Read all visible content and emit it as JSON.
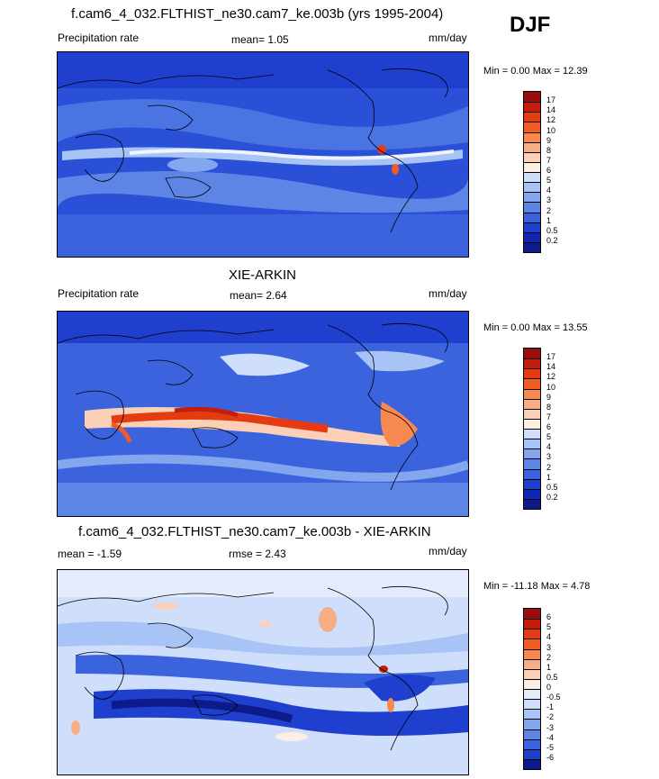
{
  "season": "DJF",
  "panels": [
    {
      "title": "f.cam6_4_032.FLTHIST_ne30.cam7_ke.003b (yrs 1995-2004)",
      "left_label": "Precipitation rate",
      "center_label": "mean=   1.05",
      "right_label": "mm/day",
      "minmax": "Min =   0.00 Max =  12.39",
      "colorbar_labels": [
        "17",
        "14",
        "12",
        "10",
        "9",
        "8",
        "7",
        "6",
        "5",
        "4",
        "3",
        "2",
        "1",
        "0.5",
        "0.2"
      ]
    },
    {
      "title": "XIE-ARKIN",
      "left_label": "Precipitation rate",
      "center_label": "mean=   2.64",
      "right_label": "mm/day",
      "minmax": "Min =   0.00 Max =  13.55",
      "colorbar_labels": [
        "17",
        "14",
        "12",
        "10",
        "9",
        "8",
        "7",
        "6",
        "5",
        "4",
        "3",
        "2",
        "1",
        "0.5",
        "0.2"
      ]
    },
    {
      "title": "f.cam6_4_032.FLTHIST_ne30.cam7_ke.003b - XIE-ARKIN",
      "left_label": "mean =  -1.59",
      "center_label": "rmse =   2.43",
      "right_label": "mm/day",
      "minmax": "Min = -11.18 Max =   4.78",
      "colorbar_labels": [
        "6",
        "5",
        "4",
        "3",
        "2",
        "1",
        "0.5",
        "0",
        "-0.5",
        "-1",
        "-2",
        "-3",
        "-4",
        "-5",
        "-6"
      ]
    }
  ],
  "colors": {
    "precip": [
      "#9b0c0c",
      "#c41e0a",
      "#e43c10",
      "#f25b23",
      "#f7884f",
      "#f8ae85",
      "#fbd0b6",
      "#fbeee3",
      "#cfdefa",
      "#a8c3f6",
      "#83a6ef",
      "#5d85e6",
      "#3b63dd",
      "#1f3fcf",
      "#1027b4",
      "#0c1a8a"
    ],
    "diff": [
      "#9b0c0c",
      "#c41e0a",
      "#e43c10",
      "#f25b23",
      "#f7884f",
      "#f8ae85",
      "#fbd0b6",
      "#fbeee3",
      "#e4ecfb",
      "#cfdefa",
      "#a8c3f6",
      "#83a6ef",
      "#5d85e6",
      "#3b63dd",
      "#1f3fcf",
      "#0c1a8a"
    ],
    "coast": "#000000"
  },
  "chart_data": [
    {
      "type": "heatmap",
      "title": "f.cam6_4_032.FLTHIST_ne30.cam7_ke.003b (yrs 1995-2004)",
      "subtitle": "Precipitation rate",
      "units": "mm/day",
      "mean": 1.05,
      "min": 0.0,
      "max": 12.39,
      "levels": [
        0.2,
        0.5,
        1,
        2,
        3,
        4,
        5,
        6,
        7,
        8,
        9,
        10,
        12,
        14,
        17
      ],
      "season": "DJF"
    },
    {
      "type": "heatmap",
      "title": "XIE-ARKIN",
      "subtitle": "Precipitation rate",
      "units": "mm/day",
      "mean": 2.64,
      "min": 0.0,
      "max": 13.55,
      "levels": [
        0.2,
        0.5,
        1,
        2,
        3,
        4,
        5,
        6,
        7,
        8,
        9,
        10,
        12,
        14,
        17
      ],
      "season": "DJF"
    },
    {
      "type": "heatmap",
      "title": "f.cam6_4_032.FLTHIST_ne30.cam7_ke.003b - XIE-ARKIN",
      "units": "mm/day",
      "mean": -1.59,
      "rmse": 2.43,
      "min": -11.18,
      "max": 4.78,
      "levels": [
        -6,
        -5,
        -4,
        -3,
        -2,
        -1,
        -0.5,
        0,
        0.5,
        1,
        2,
        3,
        4,
        5,
        6
      ],
      "season": "DJF"
    }
  ]
}
